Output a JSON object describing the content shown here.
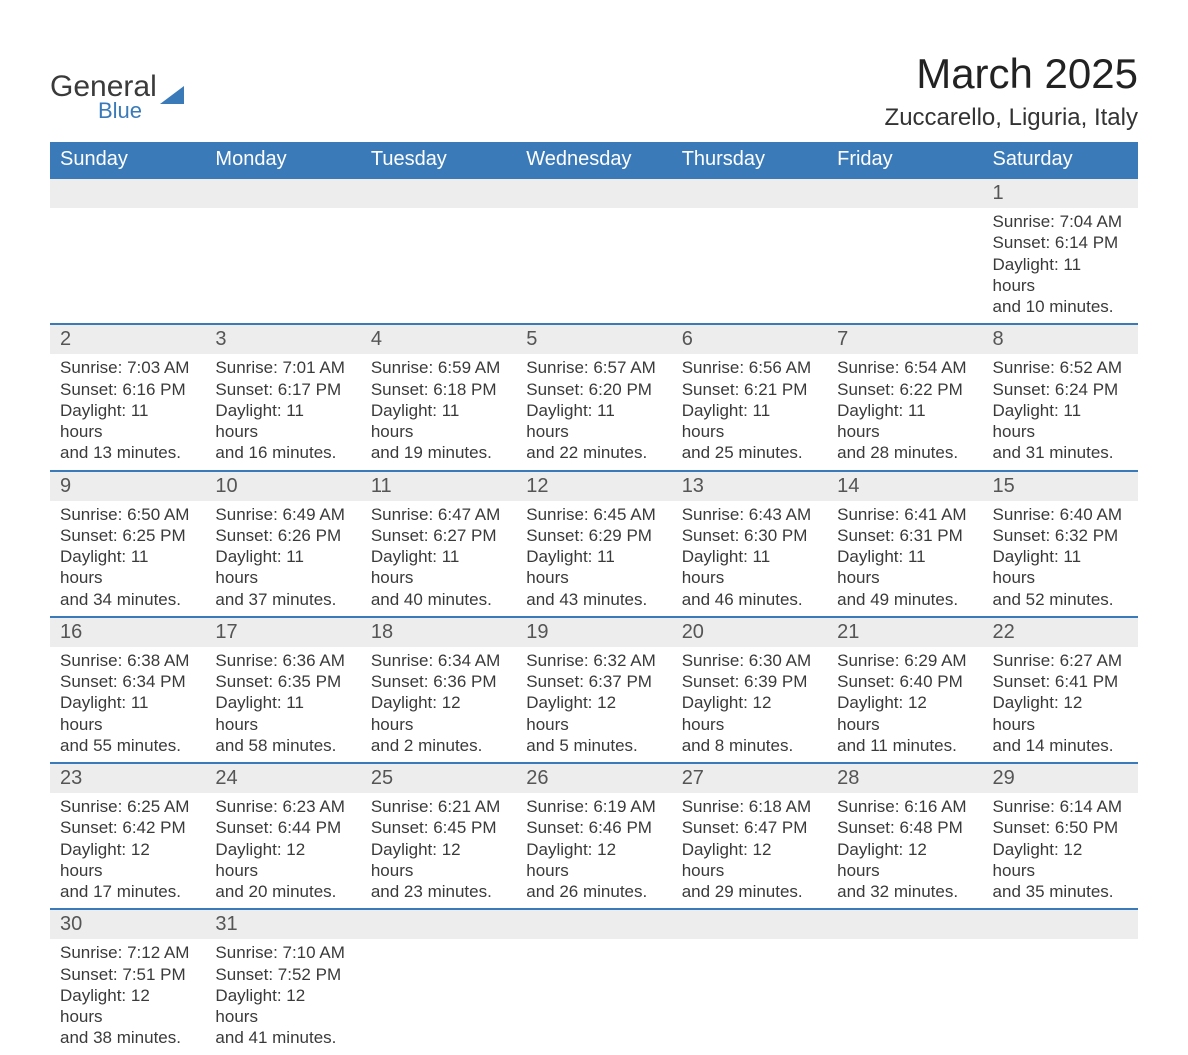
{
  "logo": {
    "text1": "General",
    "text2": "Blue"
  },
  "title": "March 2025",
  "subtitle": "Zuccarello, Liguria, Italy",
  "columns": [
    "Sunday",
    "Monday",
    "Tuesday",
    "Wednesday",
    "Thursday",
    "Friday",
    "Saturday"
  ],
  "colors": {
    "header_bg": "#3a7ab8",
    "header_fg": "#ffffff",
    "row_border": "#3a7ab8",
    "daynum_bg": "#ededed",
    "text": "#3a3a3a",
    "background": "#ffffff"
  },
  "weeks": [
    [
      null,
      null,
      null,
      null,
      null,
      null,
      {
        "n": "1",
        "sunrise": "7:04 AM",
        "sunset": "6:14 PM",
        "dl1": "11 hours",
        "dl2": "and 10 minutes."
      }
    ],
    [
      {
        "n": "2",
        "sunrise": "7:03 AM",
        "sunset": "6:16 PM",
        "dl1": "11 hours",
        "dl2": "and 13 minutes."
      },
      {
        "n": "3",
        "sunrise": "7:01 AM",
        "sunset": "6:17 PM",
        "dl1": "11 hours",
        "dl2": "and 16 minutes."
      },
      {
        "n": "4",
        "sunrise": "6:59 AM",
        "sunset": "6:18 PM",
        "dl1": "11 hours",
        "dl2": "and 19 minutes."
      },
      {
        "n": "5",
        "sunrise": "6:57 AM",
        "sunset": "6:20 PM",
        "dl1": "11 hours",
        "dl2": "and 22 minutes."
      },
      {
        "n": "6",
        "sunrise": "6:56 AM",
        "sunset": "6:21 PM",
        "dl1": "11 hours",
        "dl2": "and 25 minutes."
      },
      {
        "n": "7",
        "sunrise": "6:54 AM",
        "sunset": "6:22 PM",
        "dl1": "11 hours",
        "dl2": "and 28 minutes."
      },
      {
        "n": "8",
        "sunrise": "6:52 AM",
        "sunset": "6:24 PM",
        "dl1": "11 hours",
        "dl2": "and 31 minutes."
      }
    ],
    [
      {
        "n": "9",
        "sunrise": "6:50 AM",
        "sunset": "6:25 PM",
        "dl1": "11 hours",
        "dl2": "and 34 minutes."
      },
      {
        "n": "10",
        "sunrise": "6:49 AM",
        "sunset": "6:26 PM",
        "dl1": "11 hours",
        "dl2": "and 37 minutes."
      },
      {
        "n": "11",
        "sunrise": "6:47 AM",
        "sunset": "6:27 PM",
        "dl1": "11 hours",
        "dl2": "and 40 minutes."
      },
      {
        "n": "12",
        "sunrise": "6:45 AM",
        "sunset": "6:29 PM",
        "dl1": "11 hours",
        "dl2": "and 43 minutes."
      },
      {
        "n": "13",
        "sunrise": "6:43 AM",
        "sunset": "6:30 PM",
        "dl1": "11 hours",
        "dl2": "and 46 minutes."
      },
      {
        "n": "14",
        "sunrise": "6:41 AM",
        "sunset": "6:31 PM",
        "dl1": "11 hours",
        "dl2": "and 49 minutes."
      },
      {
        "n": "15",
        "sunrise": "6:40 AM",
        "sunset": "6:32 PM",
        "dl1": "11 hours",
        "dl2": "and 52 minutes."
      }
    ],
    [
      {
        "n": "16",
        "sunrise": "6:38 AM",
        "sunset": "6:34 PM",
        "dl1": "11 hours",
        "dl2": "and 55 minutes."
      },
      {
        "n": "17",
        "sunrise": "6:36 AM",
        "sunset": "6:35 PM",
        "dl1": "11 hours",
        "dl2": "and 58 minutes."
      },
      {
        "n": "18",
        "sunrise": "6:34 AM",
        "sunset": "6:36 PM",
        "dl1": "12 hours",
        "dl2": "and 2 minutes."
      },
      {
        "n": "19",
        "sunrise": "6:32 AM",
        "sunset": "6:37 PM",
        "dl1": "12 hours",
        "dl2": "and 5 minutes."
      },
      {
        "n": "20",
        "sunrise": "6:30 AM",
        "sunset": "6:39 PM",
        "dl1": "12 hours",
        "dl2": "and 8 minutes."
      },
      {
        "n": "21",
        "sunrise": "6:29 AM",
        "sunset": "6:40 PM",
        "dl1": "12 hours",
        "dl2": "and 11 minutes."
      },
      {
        "n": "22",
        "sunrise": "6:27 AM",
        "sunset": "6:41 PM",
        "dl1": "12 hours",
        "dl2": "and 14 minutes."
      }
    ],
    [
      {
        "n": "23",
        "sunrise": "6:25 AM",
        "sunset": "6:42 PM",
        "dl1": "12 hours",
        "dl2": "and 17 minutes."
      },
      {
        "n": "24",
        "sunrise": "6:23 AM",
        "sunset": "6:44 PM",
        "dl1": "12 hours",
        "dl2": "and 20 minutes."
      },
      {
        "n": "25",
        "sunrise": "6:21 AM",
        "sunset": "6:45 PM",
        "dl1": "12 hours",
        "dl2": "and 23 minutes."
      },
      {
        "n": "26",
        "sunrise": "6:19 AM",
        "sunset": "6:46 PM",
        "dl1": "12 hours",
        "dl2": "and 26 minutes."
      },
      {
        "n": "27",
        "sunrise": "6:18 AM",
        "sunset": "6:47 PM",
        "dl1": "12 hours",
        "dl2": "and 29 minutes."
      },
      {
        "n": "28",
        "sunrise": "6:16 AM",
        "sunset": "6:48 PM",
        "dl1": "12 hours",
        "dl2": "and 32 minutes."
      },
      {
        "n": "29",
        "sunrise": "6:14 AM",
        "sunset": "6:50 PM",
        "dl1": "12 hours",
        "dl2": "and 35 minutes."
      }
    ],
    [
      {
        "n": "30",
        "sunrise": "7:12 AM",
        "sunset": "7:51 PM",
        "dl1": "12 hours",
        "dl2": "and 38 minutes."
      },
      {
        "n": "31",
        "sunrise": "7:10 AM",
        "sunset": "7:52 PM",
        "dl1": "12 hours",
        "dl2": "and 41 minutes."
      },
      null,
      null,
      null,
      null,
      null
    ]
  ],
  "labels": {
    "sunrise": "Sunrise:",
    "sunset": "Sunset:",
    "daylight": "Daylight:"
  }
}
